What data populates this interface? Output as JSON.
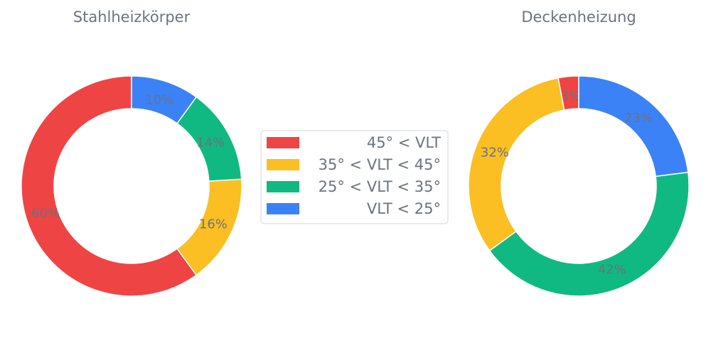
{
  "chart_data": [
    {
      "type": "pie",
      "donut": true,
      "title": "Stahlheizkörper",
      "categories": [
        "45° < VLT",
        "35° < VLT < 45°",
        "25° < VLT < 35°",
        "VLT < 25°"
      ],
      "values": [
        60,
        16,
        14,
        10
      ],
      "labels": [
        "60%",
        "16%",
        "14%",
        "10%"
      ]
    },
    {
      "type": "pie",
      "donut": true,
      "title": "Deckenheizung",
      "categories": [
        "45° < VLT",
        "35° < VLT < 45°",
        "25° < VLT < 35°",
        "VLT < 25°"
      ],
      "values": [
        3,
        32,
        42,
        23
      ],
      "labels": [
        "3%",
        "32%",
        "42%",
        "23%"
      ]
    }
  ],
  "legend": {
    "placement": "center",
    "entries": [
      {
        "label": "45° < VLT",
        "color": "#ef4444"
      },
      {
        "label": "35° < VLT < 45°",
        "color": "#fbbf24"
      },
      {
        "label": "25° < VLT < 35°",
        "color": "#10b981"
      },
      {
        "label": "VLT < 25°",
        "color": "#3b82f6"
      }
    ]
  },
  "colors": [
    "#ef4444",
    "#fbbf24",
    "#10b981",
    "#3b82f6"
  ]
}
